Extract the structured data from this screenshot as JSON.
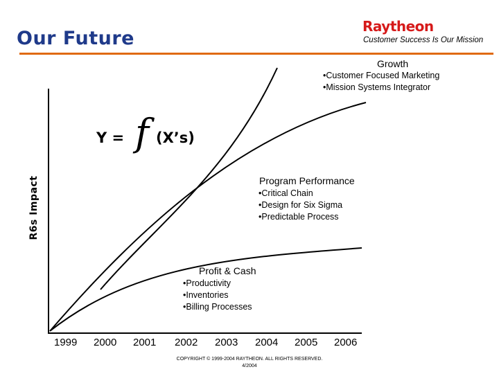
{
  "header": {
    "title": "Our Future",
    "logo_text": "Raytheon",
    "tagline": "Customer Success Is Our Mission"
  },
  "axes": {
    "ylabel": "R6s Impact"
  },
  "formula": {
    "lhs": "Y =",
    "f": "f",
    "args": "(X’s)"
  },
  "sections": {
    "growth": {
      "title": "Growth",
      "bullets": [
        "•Customer Focused Marketing",
        "•Mission Systems Integrator"
      ]
    },
    "program": {
      "title": "Program Performance",
      "bullets": [
        "•Critical Chain",
        "•Design for Six Sigma",
        "•Predictable Process"
      ]
    },
    "profit": {
      "title": "Profit  & Cash",
      "bullets": [
        "•Productivity",
        "•Inventories",
        "•Billing Processes"
      ]
    }
  },
  "years": [
    "1999",
    "2000",
    "2001",
    "2002",
    "2003",
    "2004",
    "2005",
    "2006"
  ],
  "footer": {
    "copyright": "COPYRIGHT © 1999-2004 RAYTHEON. ALL RIGHTS RESERVED.",
    "date": "4/2004"
  },
  "colors": {
    "title": "#1f3a8a",
    "logo": "#d61a1a",
    "divider": "#e06a10"
  }
}
